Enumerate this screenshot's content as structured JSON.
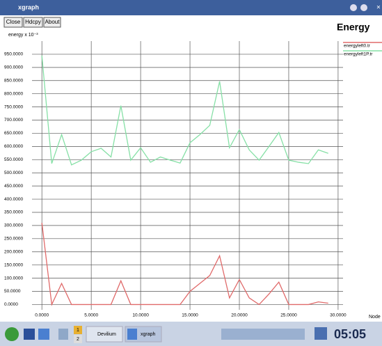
{
  "window": {
    "title": "xgraph",
    "buttons": [
      "Close",
      "Hdcpy",
      "About"
    ]
  },
  "taskbar": {
    "workspaces": [
      "1",
      "2"
    ],
    "tasks": [
      "Devilium",
      "xgraph"
    ],
    "clock": "05:05"
  },
  "chart_data": {
    "type": "line",
    "title": "Energy",
    "y_label": "energy x 10⁻³",
    "x_label": "Node",
    "x": [
      0,
      1,
      2,
      3,
      4,
      5,
      6,
      7,
      8,
      9,
      10,
      11,
      12,
      13,
      14,
      15,
      16,
      17,
      18,
      19,
      20,
      21,
      22,
      23,
      24,
      25,
      26,
      27,
      28,
      29
    ],
    "series": [
      {
        "name": "energyleft0.tr",
        "color": "#e06a6a",
        "values": [
          310,
          0,
          80,
          0,
          0,
          0,
          0,
          0,
          90,
          0,
          0,
          0,
          0,
          0,
          0,
          50,
          80,
          110,
          185,
          25,
          95,
          25,
          0,
          40,
          85,
          0,
          0,
          0,
          10,
          5
        ]
      },
      {
        "name": "energyleft1P.tr",
        "color": "#86e0a6",
        "values": [
          945,
          535,
          645,
          530,
          548,
          580,
          593,
          560,
          755,
          548,
          595,
          540,
          560,
          548,
          537,
          614,
          645,
          680,
          847,
          595,
          664,
          587,
          548,
          600,
          653,
          548,
          540,
          535,
          587,
          574
        ]
      }
    ],
    "xlim": [
      -1,
      30.5
    ],
    "ylim": [
      -20,
      1000
    ],
    "xticks": [
      {
        "value": 0,
        "label": "0.0000"
      },
      {
        "value": 5,
        "label": "5.0000"
      },
      {
        "value": 10,
        "label": "10.0000"
      },
      {
        "value": 15,
        "label": "15.0000"
      },
      {
        "value": 20,
        "label": "20.0000"
      },
      {
        "value": 25,
        "label": "25.0000"
      },
      {
        "value": 30,
        "label": "30.0000"
      }
    ],
    "yticks": [
      {
        "value": 0,
        "label": "0.0000"
      },
      {
        "value": 50,
        "label": "50.0000"
      },
      {
        "value": 100,
        "label": "100.0000"
      },
      {
        "value": 150,
        "label": "150.0000"
      },
      {
        "value": 200,
        "label": "200.0000"
      },
      {
        "value": 250,
        "label": "250.0000"
      },
      {
        "value": 300,
        "label": "300.0000"
      },
      {
        "value": 350,
        "label": "350.0000"
      },
      {
        "value": 400,
        "label": "400.0000"
      },
      {
        "value": 450,
        "label": "450.0000"
      },
      {
        "value": 500,
        "label": "500.0000"
      },
      {
        "value": 550,
        "label": "550.0000"
      },
      {
        "value": 600,
        "label": "600.0000"
      },
      {
        "value": 650,
        "label": "650.0000"
      },
      {
        "value": 700,
        "label": "700.0000"
      },
      {
        "value": 750,
        "label": "750.0000"
      },
      {
        "value": 800,
        "label": "800.0000"
      },
      {
        "value": 850,
        "label": "850.0000"
      },
      {
        "value": 900,
        "label": "900.0000"
      },
      {
        "value": 950,
        "label": "950.0000"
      }
    ],
    "grid": true
  }
}
